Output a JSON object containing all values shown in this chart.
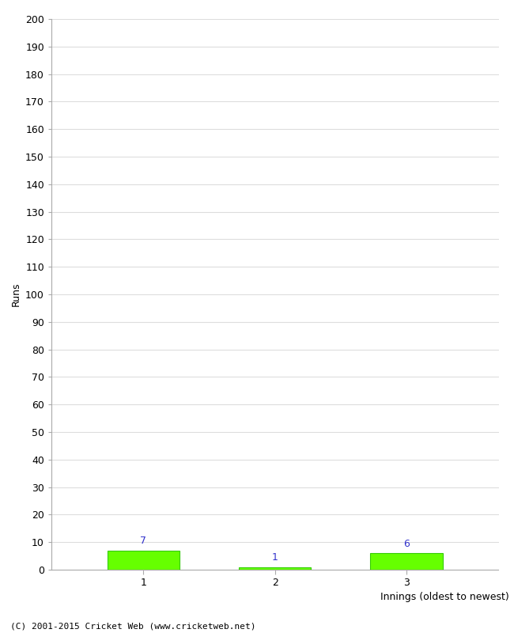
{
  "xlabel": "Innings (oldest to newest)",
  "ylabel": "Runs",
  "categories": [
    "1",
    "2",
    "3"
  ],
  "values": [
    7,
    1,
    6
  ],
  "bar_color": "#66ff00",
  "bar_edge_color": "#33cc00",
  "value_labels": [
    7,
    1,
    6
  ],
  "ylim": [
    0,
    200
  ],
  "yticks": [
    0,
    10,
    20,
    30,
    40,
    50,
    60,
    70,
    80,
    90,
    100,
    110,
    120,
    130,
    140,
    150,
    160,
    170,
    180,
    190,
    200
  ],
  "value_label_color": "#3333cc",
  "footer": "(C) 2001-2015 Cricket Web (www.cricketweb.net)",
  "background_color": "#ffffff",
  "grid_color": "#dddddd",
  "tick_label_fontsize": 9,
  "ylabel_fontsize": 9,
  "xlabel_fontsize": 9,
  "bar_width": 0.55
}
